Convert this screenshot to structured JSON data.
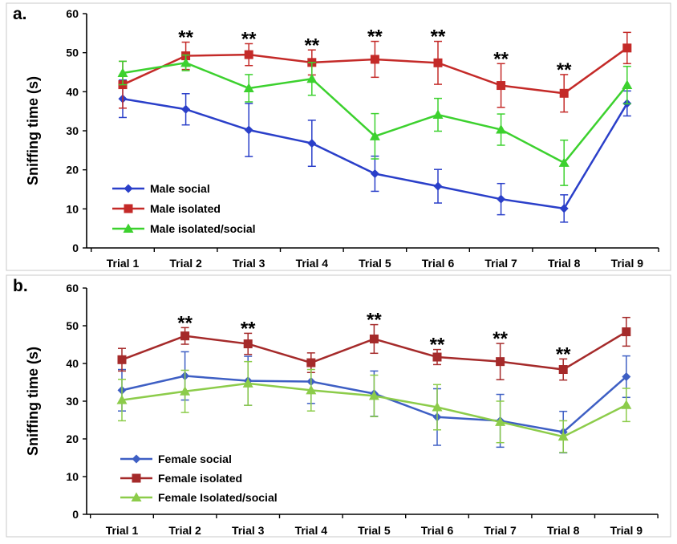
{
  "chart_data": [
    {
      "panel": "a.",
      "type": "line",
      "ylabel": "Sniffing time (s)",
      "ylim": [
        0,
        60
      ],
      "yticks": [
        0,
        10,
        20,
        30,
        40,
        50,
        60
      ],
      "categories": [
        "Trial 1",
        "Trial 2",
        "Trial 3",
        "Trial 4",
        "Trial 5",
        "Trial 6",
        "Trial 7",
        "Trial 8",
        "Trial 9"
      ],
      "significance": [
        "",
        "**",
        "**",
        "**",
        "**",
        "**",
        "**",
        "**",
        ""
      ],
      "legend_position": "bottom-left",
      "grid": false,
      "series": [
        {
          "name": "Male social",
          "color": "#2a3fc9",
          "marker": "diamond",
          "values": [
            38.2,
            35.5,
            30.2,
            26.8,
            19.0,
            15.8,
            12.5,
            10.1,
            37.0
          ],
          "errors": [
            4.8,
            4.0,
            6.8,
            5.9,
            4.5,
            4.3,
            4.0,
            3.5,
            3.2
          ]
        },
        {
          "name": "Male isolated",
          "color": "#c42a28",
          "marker": "square",
          "values": [
            41.8,
            49.2,
            49.5,
            47.5,
            48.3,
            47.4,
            41.6,
            39.6,
            51.2
          ],
          "errors": [
            6.0,
            3.5,
            2.8,
            3.2,
            4.6,
            5.5,
            5.6,
            4.8,
            4.0
          ]
        },
        {
          "name": "Male isolated/social",
          "color": "#3cd12e",
          "marker": "triangle",
          "values": [
            44.8,
            47.4,
            40.9,
            43.3,
            28.6,
            34.1,
            30.3,
            21.8,
            41.7
          ],
          "errors": [
            3.0,
            2.0,
            3.5,
            4.2,
            5.8,
            4.2,
            4.0,
            5.8,
            4.8
          ]
        }
      ]
    },
    {
      "panel": "b.",
      "type": "line",
      "ylabel": "Sniffing time (s)",
      "ylim": [
        0,
        60
      ],
      "yticks": [
        0,
        10,
        20,
        30,
        40,
        50,
        60
      ],
      "categories": [
        "Trial 1",
        "Trial 2",
        "Trial 3",
        "Trial 4",
        "Trial 5",
        "Trial 6",
        "Trial 7",
        "Trial 8",
        "Trial 9"
      ],
      "significance": [
        "",
        "**",
        "**",
        "",
        "**",
        "**",
        "**",
        "**",
        ""
      ],
      "legend_position": "bottom-left",
      "grid": false,
      "series": [
        {
          "name": "Female social",
          "color": "#3e5fc4",
          "marker": "diamond",
          "values": [
            32.9,
            36.7,
            35.4,
            35.2,
            32.0,
            25.8,
            24.8,
            21.8,
            36.5
          ],
          "errors": [
            5.5,
            6.4,
            6.5,
            5.8,
            6.0,
            7.5,
            7.0,
            5.5,
            5.5
          ]
        },
        {
          "name": "Female isolated",
          "color": "#a52a2a",
          "marker": "square",
          "values": [
            41.0,
            47.3,
            45.2,
            40.2,
            46.5,
            41.7,
            40.5,
            38.4,
            48.4
          ],
          "errors": [
            3.0,
            2.2,
            2.8,
            2.6,
            3.8,
            2.0,
            4.8,
            2.8,
            3.8
          ]
        },
        {
          "name": "Female Isolated/social",
          "color": "#8ccc4a",
          "marker": "triangle",
          "values": [
            30.3,
            32.6,
            34.7,
            32.9,
            31.4,
            28.4,
            24.5,
            20.6,
            29.0
          ],
          "errors": [
            5.5,
            5.6,
            5.8,
            5.5,
            5.5,
            6.0,
            5.5,
            4.2,
            4.4
          ]
        }
      ]
    }
  ]
}
